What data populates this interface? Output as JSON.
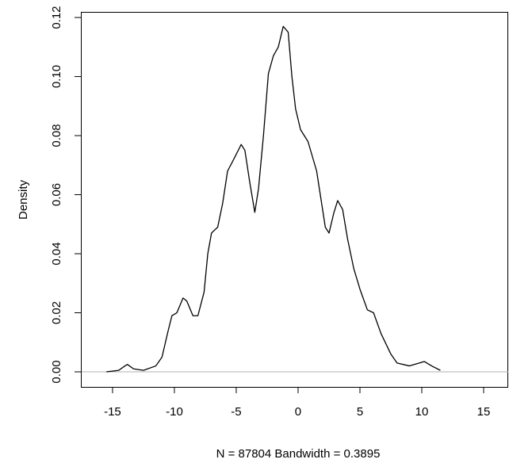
{
  "chart_data": {
    "type": "line",
    "x_label": "N = 87804   Bandwidth = 0.3895",
    "y_label": "Density",
    "x": [
      -15.5,
      -14.5,
      -14,
      -13.8,
      -13.3,
      -12.5,
      -11.5,
      -11,
      -10.5,
      -10.2,
      -9.8,
      -9.3,
      -9,
      -8.5,
      -8.1,
      -7.6,
      -7.3,
      -7,
      -6.5,
      -6.1,
      -5.7,
      -5.2,
      -4.6,
      -4.3,
      -3.9,
      -3.5,
      -3.2,
      -2.8,
      -2.4,
      -2,
      -1.6,
      -1.2,
      -0.8,
      -0.5,
      -0.2,
      0.2,
      0.8,
      1.5,
      2.2,
      2.5,
      2.9,
      3.2,
      3.6,
      4,
      4.5,
      5,
      5.6,
      6.1,
      6.7,
      7.5,
      8,
      9,
      9.8,
      10.2,
      10.8,
      11.5
    ],
    "values": [
      0,
      0.0005,
      0.002,
      0.0025,
      0.001,
      0.0005,
      0.002,
      0.005,
      0.014,
      0.019,
      0.02,
      0.025,
      0.024,
      0.019,
      0.019,
      0.027,
      0.04,
      0.047,
      0.049,
      0.057,
      0.068,
      0.072,
      0.077,
      0.075,
      0.064,
      0.054,
      0.062,
      0.08,
      0.101,
      0.107,
      0.11,
      0.117,
      0.115,
      0.1,
      0.089,
      0.082,
      0.078,
      0.068,
      0.049,
      0.047,
      0.054,
      0.058,
      0.055,
      0.045,
      0.035,
      0.028,
      0.021,
      0.02,
      0.013,
      0.006,
      0.003,
      0.002,
      0.003,
      0.0035,
      0.002,
      0.0005
    ],
    "color": "#000000",
    "baseline": 0,
    "baseline_color": "#b0b0b0",
    "xlim": [
      -17.56,
      17.05
    ],
    "ylim": [
      -0.0051,
      0.1219
    ],
    "xticks": [
      -15,
      -10,
      -5,
      0,
      5,
      10,
      15
    ],
    "yticks": [
      {
        "value": 0,
        "label": "0.00"
      },
      0.02,
      0.04,
      0.06,
      0.08,
      {
        "value": 0.1,
        "label": "0.10"
      },
      0.12
    ]
  }
}
